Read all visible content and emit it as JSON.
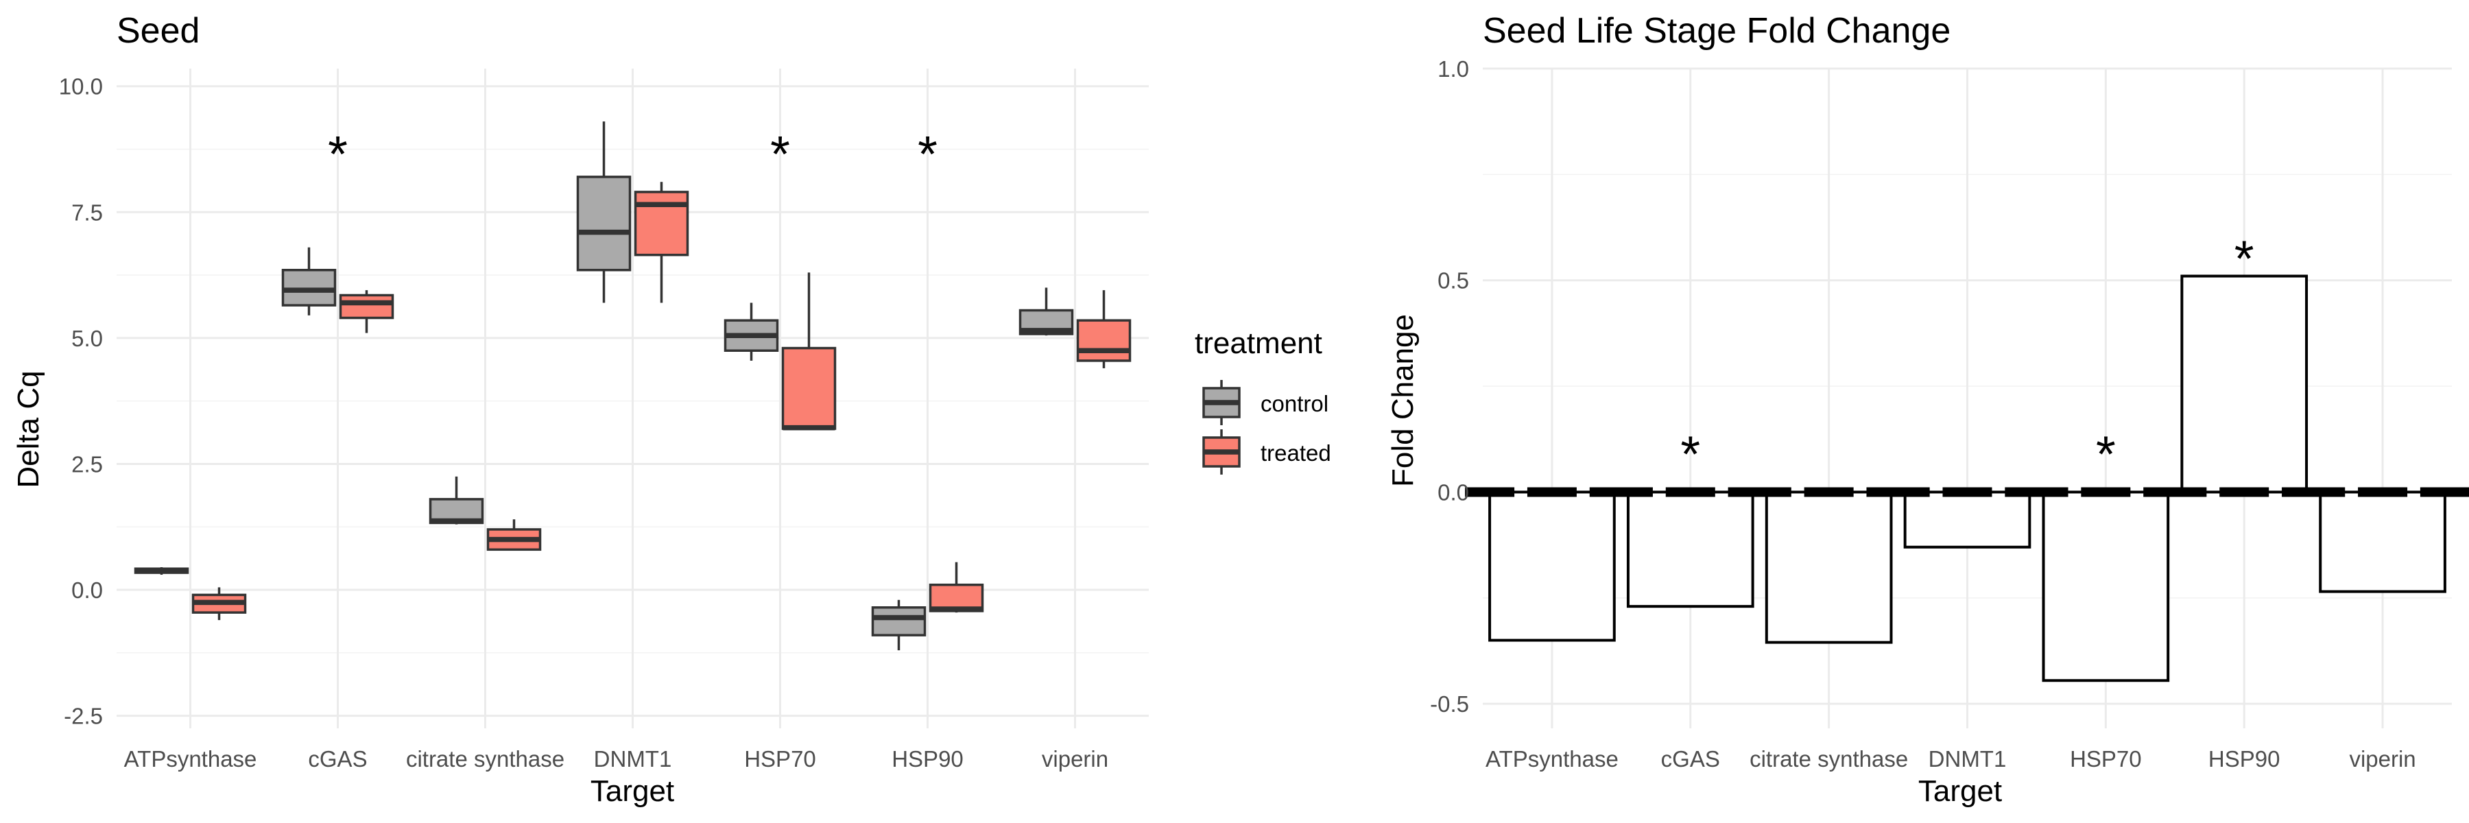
{
  "chart_data": [
    {
      "type": "box",
      "title": "Seed",
      "xlabel": "Target",
      "ylabel": "Delta Cq",
      "ylim": [
        -2.5,
        10
      ],
      "yticks": [
        "-2.5",
        "0.0",
        "2.5",
        "5.0",
        "7.5",
        "10.0"
      ],
      "categories": [
        "ATPsynthase",
        "cGAS",
        "citrate synthase",
        "DNMT1",
        "HSP70",
        "HSP90",
        "viperin"
      ],
      "legend": {
        "title": "treatment",
        "position": "right"
      },
      "significance_marker": "*",
      "significant": [
        "cGAS",
        "HSP70",
        "HSP90"
      ],
      "series": [
        {
          "name": "control",
          "color": "#aaaaaa",
          "boxes": [
            {
              "min": 0.3,
              "q1": 0.34,
              "median": 0.38,
              "q3": 0.42,
              "max": 0.45
            },
            {
              "min": 5.45,
              "q1": 5.65,
              "median": 5.95,
              "q3": 6.35,
              "max": 6.8
            },
            {
              "min": 1.3,
              "q1": 1.33,
              "median": 1.37,
              "q3": 1.8,
              "max": 2.25
            },
            {
              "min": 5.7,
              "q1": 6.35,
              "median": 7.1,
              "q3": 8.2,
              "max": 9.3
            },
            {
              "min": 4.55,
              "q1": 4.75,
              "median": 5.05,
              "q3": 5.35,
              "max": 5.7
            },
            {
              "min": -1.2,
              "q1": -0.9,
              "median": -0.55,
              "q3": -0.35,
              "max": -0.2
            },
            {
              "min": 5.05,
              "q1": 5.08,
              "median": 5.15,
              "q3": 5.55,
              "max": 6.0
            }
          ]
        },
        {
          "name": "treated",
          "color": "#fa8072",
          "boxes": [
            {
              "min": -0.6,
              "q1": -0.45,
              "median": -0.25,
              "q3": -0.1,
              "max": 0.05
            },
            {
              "min": 5.1,
              "q1": 5.4,
              "median": 5.7,
              "q3": 5.85,
              "max": 5.95
            },
            {
              "min": 0.8,
              "q1": 0.8,
              "median": 1.0,
              "q3": 1.2,
              "max": 1.4
            },
            {
              "min": 5.7,
              "q1": 6.65,
              "median": 7.65,
              "q3": 7.9,
              "max": 8.1
            },
            {
              "min": 3.2,
              "q1": 3.2,
              "median": 3.22,
              "q3": 4.8,
              "max": 6.3
            },
            {
              "min": -0.45,
              "q1": -0.42,
              "median": -0.38,
              "q3": 0.1,
              "max": 0.55
            },
            {
              "min": 4.4,
              "q1": 4.55,
              "median": 4.75,
              "q3": 5.35,
              "max": 5.95
            }
          ]
        }
      ]
    },
    {
      "type": "bar",
      "title": "Seed Life Stage Fold Change",
      "xlabel": "Target",
      "ylabel": "Fold Change",
      "ylim": [
        -0.55,
        1.0
      ],
      "yticks": [
        "-0.5",
        "0.0",
        "0.5",
        "1.0"
      ],
      "categories": [
        "ATPsynthase",
        "cGAS",
        "citrate synthase",
        "DNMT1",
        "HSP70",
        "HSP90",
        "viperin"
      ],
      "values": [
        -0.35,
        -0.27,
        -0.355,
        -0.13,
        -0.445,
        0.51,
        -0.235
      ],
      "significance_marker": "*",
      "significant": [
        "cGAS",
        "HSP70",
        "HSP90"
      ]
    }
  ]
}
